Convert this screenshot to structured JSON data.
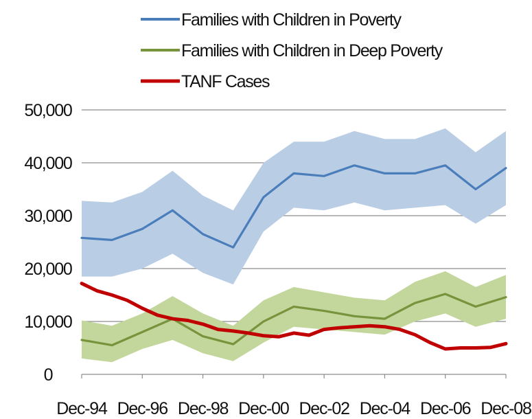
{
  "chart_data": {
    "type": "line",
    "title": "",
    "xlabel": "",
    "ylabel": "",
    "ylim": [
      0,
      50000
    ],
    "yticks": [
      0,
      10000,
      20000,
      30000,
      40000,
      50000
    ],
    "ytick_labels": [
      "0",
      "10,000",
      "20,000",
      "30,000",
      "40,000",
      "50,000"
    ],
    "x_range": [
      1994.92,
      2008.92
    ],
    "xtick_values": [
      1994.92,
      1996.92,
      1998.92,
      2000.92,
      2002.92,
      2004.92,
      2006.92,
      2008.92
    ],
    "xtick_labels": [
      "Dec-94",
      "Dec-96",
      "Dec-98",
      "Dec-00",
      "Dec-02",
      "Dec-04",
      "Dec-06",
      "Dec-08"
    ],
    "grid": "horizontal",
    "legend_position": "top",
    "series": [
      {
        "name": "Families with Children in Poverty",
        "color": "#4a7ebb",
        "band_color": "#b9cde5",
        "x": [
          1994.92,
          1995.92,
          1996.92,
          1997.92,
          1998.92,
          1999.92,
          2000.92,
          2001.92,
          2002.92,
          2003.92,
          2004.92,
          2005.92,
          2006.92,
          2007.92,
          2008.92
        ],
        "y": [
          25800,
          25400,
          27500,
          31000,
          26500,
          24000,
          33500,
          38000,
          37500,
          39500,
          38000,
          38000,
          39500,
          35000,
          39000
        ],
        "lower": [
          18500,
          18500,
          20000,
          22800,
          19200,
          17000,
          27000,
          31500,
          31000,
          32500,
          31000,
          31500,
          32000,
          28500,
          32000
        ],
        "upper": [
          32800,
          32500,
          34500,
          38500,
          33800,
          31000,
          40000,
          44000,
          44000,
          46000,
          44500,
          44500,
          46500,
          42000,
          46000
        ]
      },
      {
        "name": "Families with Children in Deep Poverty",
        "color": "#77933c",
        "band_color": "#c3d69b",
        "x": [
          1994.92,
          1995.92,
          1996.92,
          1997.92,
          1998.92,
          1999.92,
          2000.92,
          2001.92,
          2002.92,
          2003.92,
          2004.92,
          2005.92,
          2006.92,
          2007.92,
          2008.92
        ],
        "y": [
          6500,
          5500,
          8000,
          10500,
          7200,
          5700,
          10000,
          12800,
          12000,
          11000,
          10500,
          13500,
          15200,
          12800,
          14600
        ],
        "lower": [
          3000,
          2300,
          4800,
          6500,
          4000,
          2500,
          6000,
          9000,
          8500,
          8000,
          7500,
          10000,
          11500,
          9000,
          10500
        ],
        "upper": [
          10200,
          9200,
          11500,
          14800,
          11500,
          9200,
          14000,
          16500,
          15500,
          14500,
          14000,
          17500,
          19500,
          16500,
          18800
        ]
      },
      {
        "name": "TANF Cases",
        "color": "#c00000",
        "x": [
          1994.92,
          1995.42,
          1995.92,
          1996.42,
          1996.92,
          1997.42,
          1997.92,
          1998.42,
          1998.92,
          1999.42,
          1999.92,
          2000.42,
          2000.92,
          2001.42,
          2001.92,
          2002.42,
          2002.92,
          2003.42,
          2003.92,
          2004.42,
          2004.92,
          2005.42,
          2005.92,
          2006.42,
          2006.92,
          2007.42,
          2007.92,
          2008.42,
          2008.92
        ],
        "y": [
          17200,
          15800,
          15000,
          14000,
          12500,
          11200,
          10500,
          10200,
          9500,
          8500,
          8200,
          7800,
          7300,
          7100,
          7800,
          7400,
          8500,
          8800,
          9000,
          9200,
          9000,
          8500,
          7500,
          6000,
          4800,
          5000,
          5000,
          5100,
          5800
        ]
      }
    ]
  }
}
